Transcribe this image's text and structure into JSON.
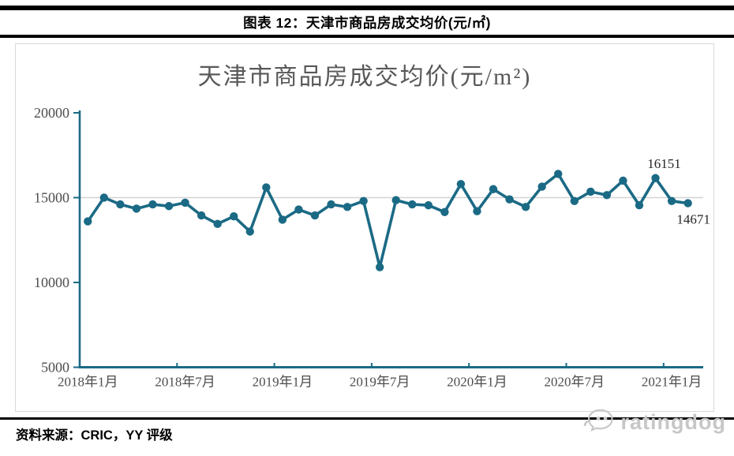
{
  "header": {
    "title": "图表 12：天津市商品房成交均价(元/㎡)"
  },
  "chart_data": {
    "type": "line",
    "title": "天津市商品房成交均价(元/m²)",
    "categories": [
      "2018年1月",
      "2018年2月",
      "2018年3月",
      "2018年4月",
      "2018年5月",
      "2018年6月",
      "2018年7月",
      "2018年8月",
      "2018年9月",
      "2018年10月",
      "2018年11月",
      "2018年12月",
      "2019年1月",
      "2019年2月",
      "2019年3月",
      "2019年4月",
      "2019年5月",
      "2019年6月",
      "2019年7月",
      "2019年8月",
      "2019年9月",
      "2019年10月",
      "2019年11月",
      "2019年12月",
      "2020年1月",
      "2020年2月",
      "2020年3月",
      "2020年4月",
      "2020年5月",
      "2020年6月",
      "2020年7月",
      "2020年8月",
      "2020年9月",
      "2020年10月",
      "2020年11月",
      "2020年12月",
      "2021年1月",
      "2021年2月"
    ],
    "values": [
      13600,
      15000,
      14600,
      14350,
      14600,
      14500,
      14700,
      13950,
      13450,
      13900,
      13000,
      15600,
      13700,
      14300,
      13950,
      14600,
      14450,
      14800,
      10900,
      14850,
      14600,
      14550,
      14150,
      15800,
      14200,
      15500,
      14900,
      14450,
      15650,
      16400,
      14800,
      15350,
      15150,
      16000,
      14550,
      16151,
      14800,
      14671
    ],
    "x_tick_labels": [
      "2018年1月",
      "2018年7月",
      "2019年1月",
      "2019年7月",
      "2020年1月",
      "2020年7月",
      "2021年1月"
    ],
    "x_tick_every": 6,
    "y_ticks": [
      5000,
      10000,
      15000,
      20000
    ],
    "ylim": [
      5000,
      20000
    ],
    "gridlines": [
      15000
    ],
    "legend": "none",
    "annotations": [
      {
        "index": 35,
        "category": "2020年12月",
        "label": "16151",
        "position": "above"
      },
      {
        "index": 37,
        "category": "2021年2月",
        "label": "14671",
        "position": "below"
      }
    ],
    "colors": {
      "series": "#1B6A85",
      "axis": "#1B6A85",
      "grid": "#D3D3D3"
    }
  },
  "footer": {
    "source": "资料来源：CRIC，YY 评级",
    "logo_text": "ratingdog"
  }
}
